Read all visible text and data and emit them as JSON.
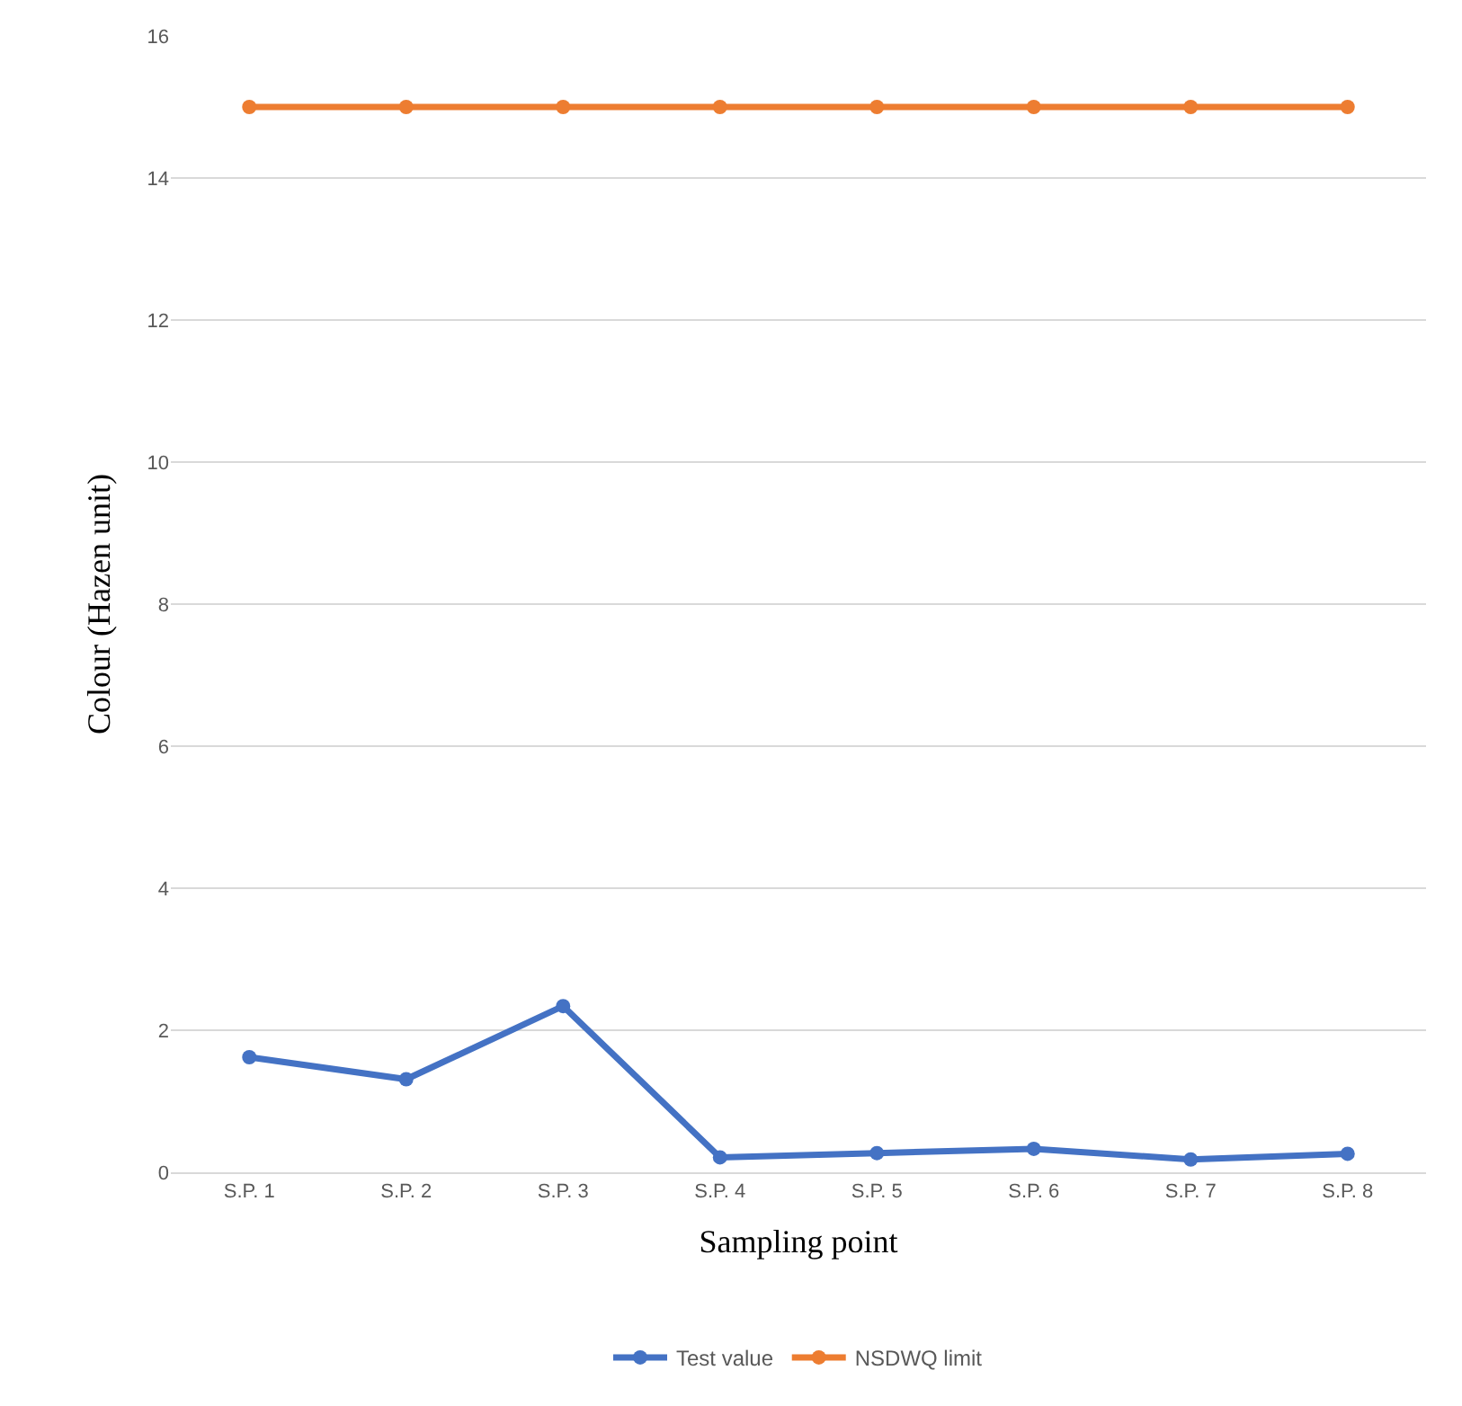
{
  "chart_data": {
    "type": "line",
    "xlabel": "Sampling point",
    "ylabel": "Colour (Hazen unit)",
    "categories": [
      "S.P. 1",
      "S.P. 2",
      "S.P. 3",
      "S.P. 4",
      "S.P. 5",
      "S.P. 6",
      "S.P. 7",
      "S.P. 8"
    ],
    "series": [
      {
        "name": "Test value",
        "color": "#4472c4",
        "values": [
          1.62,
          1.31,
          2.34,
          0.21,
          0.27,
          0.33,
          0.18,
          0.26
        ]
      },
      {
        "name": "NSDWQ limit",
        "color": "#ed7d31",
        "values": [
          15,
          15,
          15,
          15,
          15,
          15,
          15,
          15
        ]
      }
    ],
    "ylim": [
      0,
      16
    ],
    "yticks": [
      0,
      2,
      4,
      6,
      8,
      10,
      12,
      14,
      16
    ],
    "grid": "y",
    "legend": "bottom",
    "marker": "circle",
    "line_style": "solid"
  }
}
